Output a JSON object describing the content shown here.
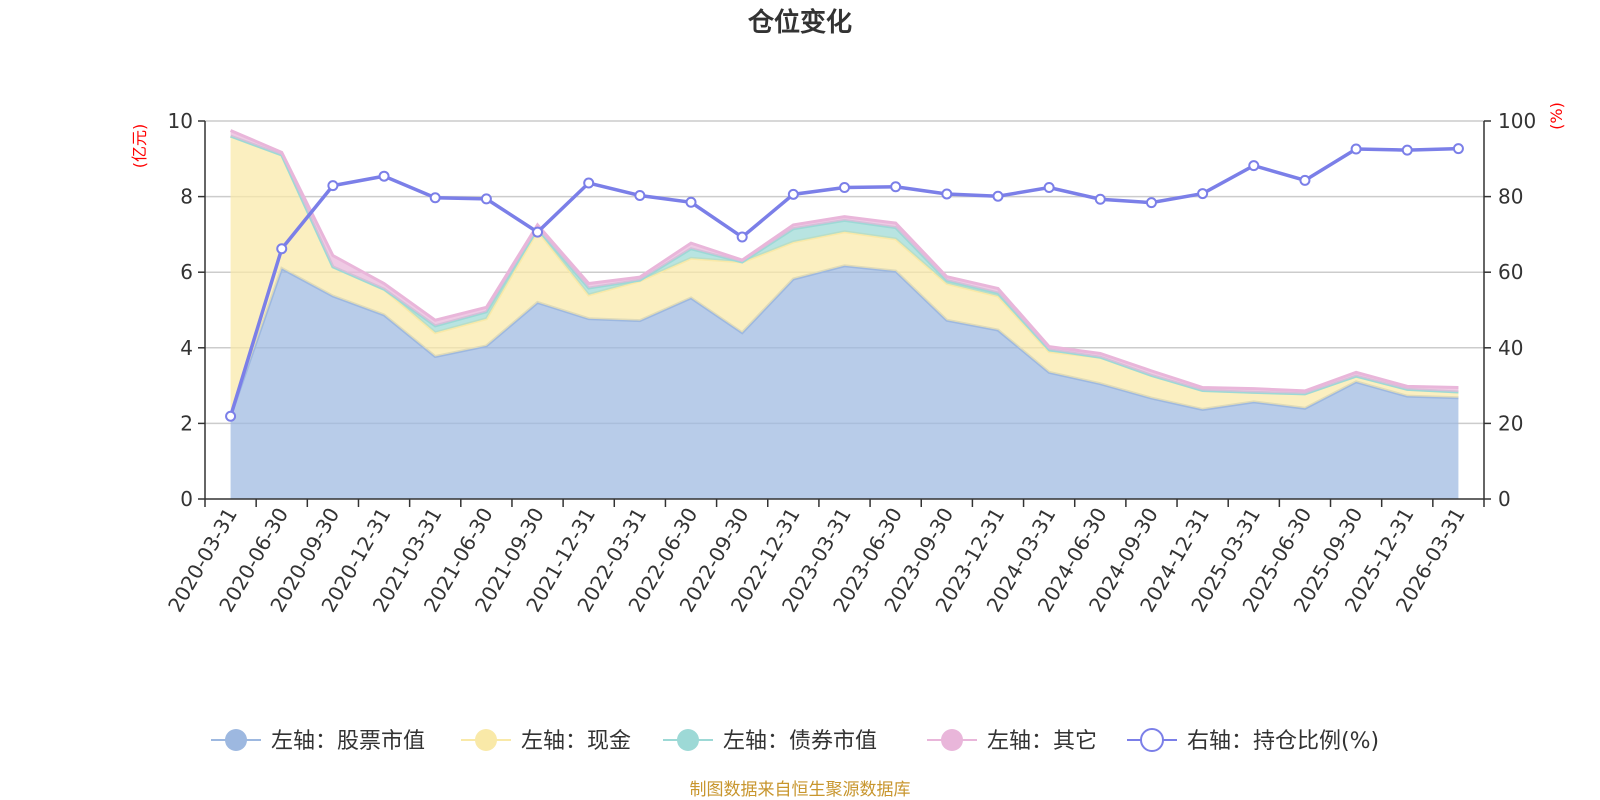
{
  "chart_data": {
    "type": "area",
    "title": "仓位变化",
    "x": [
      "2020-03-31",
      "2020-06-30",
      "2020-09-30",
      "2020-12-31",
      "2021-03-31",
      "2021-06-30",
      "2021-09-30",
      "2021-12-31",
      "2022-03-31",
      "2022-06-30",
      "2022-09-30",
      "2022-12-31",
      "2023-03-31",
      "2023-06-30",
      "2023-09-30",
      "2023-12-31",
      "2024-03-31",
      "2024-06-30",
      "2024-09-30",
      "2024-12-31",
      "2025-03-31",
      "2025-06-30",
      "2025-09-30",
      "2025-12-31",
      "2026-03-31"
    ],
    "left_axis": {
      "unit": "(亿元)",
      "ylim": [
        0,
        10
      ],
      "ticks": [
        "0",
        "2",
        "4",
        "6",
        "8",
        "10"
      ]
    },
    "right_axis": {
      "unit": "(%)",
      "ylim": [
        0,
        100
      ],
      "ticks": [
        "0",
        "20",
        "40",
        "60",
        "80",
        "100"
      ]
    },
    "series": [
      {
        "name": "左轴：股票市值",
        "axis": "left",
        "kind": "stacked-area",
        "color": "#9db8e0",
        "values": [
          2.2,
          6.1,
          5.37,
          4.87,
          3.77,
          4.05,
          5.2,
          4.77,
          4.72,
          5.32,
          4.4,
          5.82,
          6.17,
          6.03,
          4.73,
          4.47,
          3.35,
          3.05,
          2.67,
          2.37,
          2.57,
          2.4,
          3.1,
          2.72,
          2.68
        ]
      },
      {
        "name": "左轴：现金",
        "axis": "left",
        "kind": "stacked-area",
        "color": "#f9e9a8",
        "values": [
          7.4,
          3.0,
          0.77,
          0.68,
          0.63,
          0.72,
          1.9,
          0.63,
          1.05,
          1.05,
          1.87,
          0.98,
          0.9,
          0.85,
          0.97,
          0.9,
          0.55,
          0.7,
          0.6,
          0.5,
          0.25,
          0.38,
          0.15,
          0.18,
          0.15
        ]
      },
      {
        "name": "左轴：债券市值",
        "axis": "left",
        "kind": "stacked-area",
        "color": "#9dd9d6",
        "values": [
          0,
          0,
          0,
          0,
          0.18,
          0.18,
          0.05,
          0.18,
          0.02,
          0.25,
          0,
          0.35,
          0.3,
          0.3,
          0.08,
          0.08,
          0.05,
          0,
          0,
          0,
          0,
          0,
          0,
          0,
          0
        ]
      },
      {
        "name": "左轴：其它",
        "axis": "left",
        "kind": "stacked-area",
        "color": "#e9b6da",
        "values": [
          0.15,
          0.07,
          0.3,
          0.15,
          0.15,
          0.12,
          0.1,
          0.12,
          0.08,
          0.15,
          0.05,
          0.1,
          0.1,
          0.12,
          0.1,
          0.12,
          0.08,
          0.1,
          0.12,
          0.08,
          0.1,
          0.08,
          0.1,
          0.08,
          0.12
        ]
      },
      {
        "name": "右轴：持仓比例(%)",
        "axis": "right",
        "kind": "line",
        "color": "#7b7fe8",
        "values": [
          21.9,
          66.2,
          82.9,
          85.4,
          79.7,
          79.4,
          70.6,
          83.6,
          80.3,
          78.5,
          69.3,
          80.6,
          82.4,
          82.6,
          80.7,
          80.1,
          82.4,
          79.3,
          78.4,
          80.8,
          88.2,
          84.3,
          92.6,
          92.3,
          92.7
        ]
      }
    ],
    "legend_position": "bottom-center",
    "grid": true
  },
  "source_note": "制图数据来自恒生聚源数据库"
}
